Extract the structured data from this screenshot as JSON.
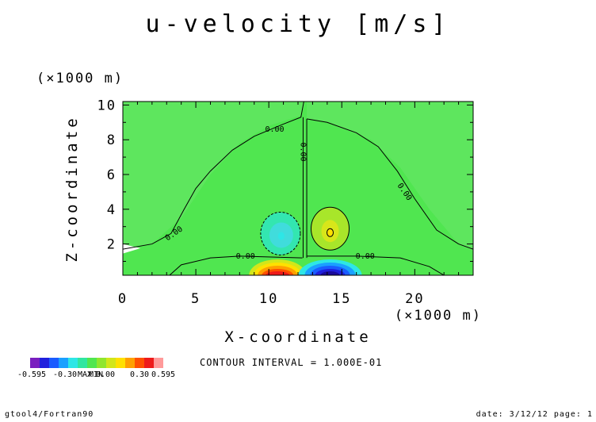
{
  "chart_data": {
    "type": "heatmap",
    "title": "u-velocity [m/s]",
    "xlabel": "X-coordinate",
    "ylabel": "Z-coordinate",
    "x_unit": "(×1000 m)",
    "y_unit": "(×1000 m)",
    "xlim": [
      0,
      24
    ],
    "ylim": [
      0.2,
      10.2
    ],
    "x_ticks": [
      {
        "value": 0,
        "label": "0"
      },
      {
        "value": 5,
        "label": "5"
      },
      {
        "value": 10,
        "label": "10"
      },
      {
        "value": 15,
        "label": "15"
      },
      {
        "value": 20,
        "label": "20"
      }
    ],
    "y_ticks": [
      {
        "value": 2,
        "label": "2"
      },
      {
        "value": 4,
        "label": "4"
      },
      {
        "value": 6,
        "label": "6"
      },
      {
        "value": 8,
        "label": "8"
      },
      {
        "value": 10,
        "label": "10"
      }
    ],
    "contour_labels": [
      "0.00",
      "0.00",
      "0.00",
      "0.00",
      "0.00",
      "0.00"
    ],
    "field": {
      "background": 0.0,
      "features": [
        {
          "x": 10.8,
          "z": 2.6,
          "value": -0.2
        },
        {
          "x": 14.2,
          "z": 2.7,
          "value": 0.25
        },
        {
          "x": 10.6,
          "z": 0.3,
          "value": 0.55
        },
        {
          "x": 14.2,
          "z": 0.3,
          "value": -0.55
        }
      ]
    },
    "contour_interval": "CONTOUR INTERVAL = 1.000E-01",
    "colorbar": {
      "colors": [
        "#7a1fbf",
        "#2020dd",
        "#1a5cff",
        "#1aa0ff",
        "#2ee6e6",
        "#30e6a0",
        "#50e650",
        "#90e62e",
        "#d2e61a",
        "#ffe000",
        "#ffa000",
        "#ff5000",
        "#ee1a1a",
        "#ff9a9a"
      ],
      "labels": [
        "-0.595",
        "-0.30",
        "MAX",
        "MIN",
        "0.00",
        "0.30",
        "0.595"
      ]
    }
  },
  "footer": {
    "left": "gtool4/Fortran90",
    "right": "date: 3/12/12 page: 1"
  }
}
